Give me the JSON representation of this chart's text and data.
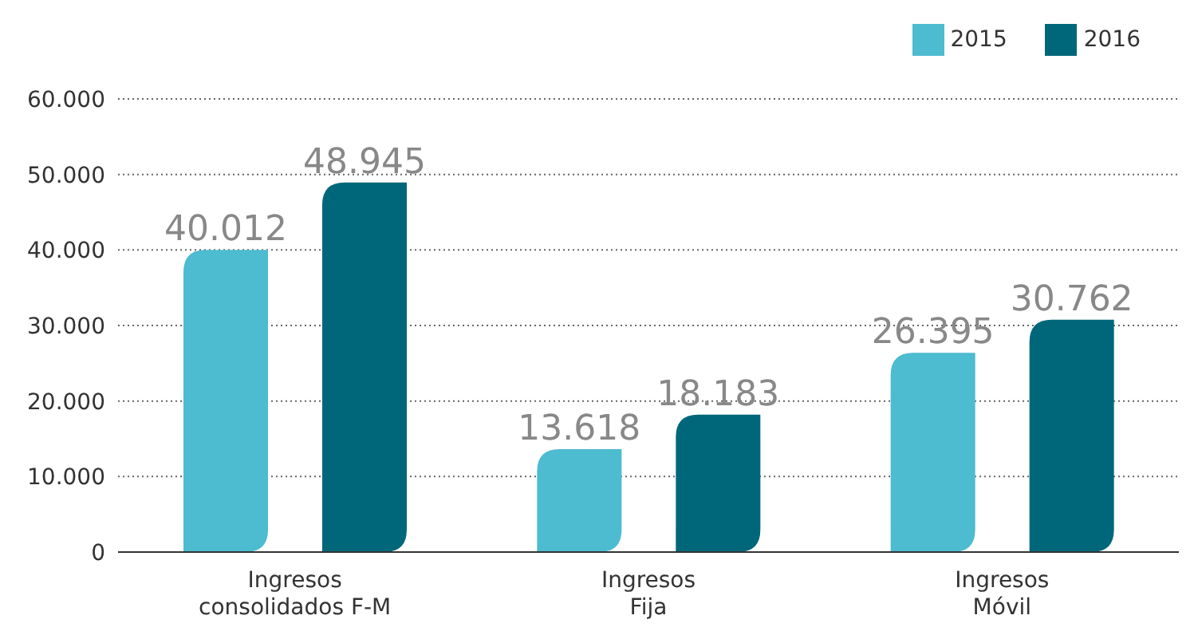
{
  "chart_data": {
    "type": "bar",
    "categories": [
      "Ingresos consolidados F-M",
      "Ingresos Fija",
      "Ingresos Móvil"
    ],
    "series": [
      {
        "name": "2015",
        "color": "#4dbbd0",
        "values": [
          40012,
          13618,
          26395
        ],
        "value_labels": [
          "40.012",
          "13.618",
          "26.395"
        ]
      },
      {
        "name": "2016",
        "color": "#00677a",
        "values": [
          48945,
          18183,
          30762
        ],
        "value_labels": [
          "48.945",
          "18.183",
          "30.762"
        ]
      }
    ],
    "ylim": [
      0,
      60000
    ],
    "yticks": [
      {
        "value": 0,
        "label": "0"
      },
      {
        "value": 10000,
        "label": "10.000"
      },
      {
        "value": 20000,
        "label": "20.000"
      },
      {
        "value": 30000,
        "label": "30.000"
      },
      {
        "value": 40000,
        "label": "40.000"
      },
      {
        "value": 50000,
        "label": "50.000"
      },
      {
        "value": 60000,
        "label": "60.000"
      }
    ],
    "grid": "y",
    "legend": "top right"
  }
}
